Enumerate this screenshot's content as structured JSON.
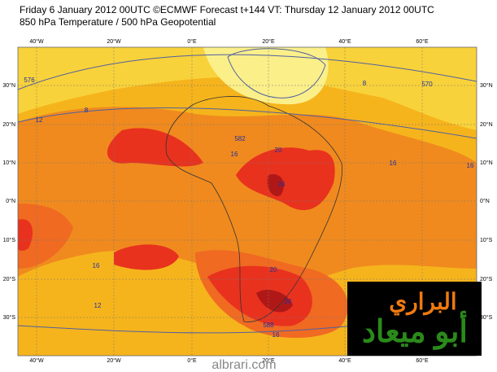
{
  "header": {
    "line1": "Friday 6 January 2012 00UTC ©ECMWF Forecast t+144 VT: Thursday 12 January 2012 00UTC",
    "line2": "850 hPa Temperature / 500 hPa Geopotential"
  },
  "map": {
    "lon_labels": [
      "40°W",
      "20°W",
      "0°E",
      "20°E",
      "40°E",
      "60°E"
    ],
    "lat_labels": [
      "30°N",
      "20°N",
      "10°N",
      "0°N",
      "10°S",
      "20°S",
      "30°S"
    ],
    "contour_labels": [
      "12",
      "8",
      "576",
      "582",
      "16",
      "20",
      "24",
      "8",
      "16",
      "16",
      "12",
      "20",
      "24",
      "588",
      "16",
      "570",
      "16"
    ]
  },
  "watermark": {
    "line1": "البراري",
    "line2": "أبو ميعاد",
    "site": "albrari.com"
  }
}
